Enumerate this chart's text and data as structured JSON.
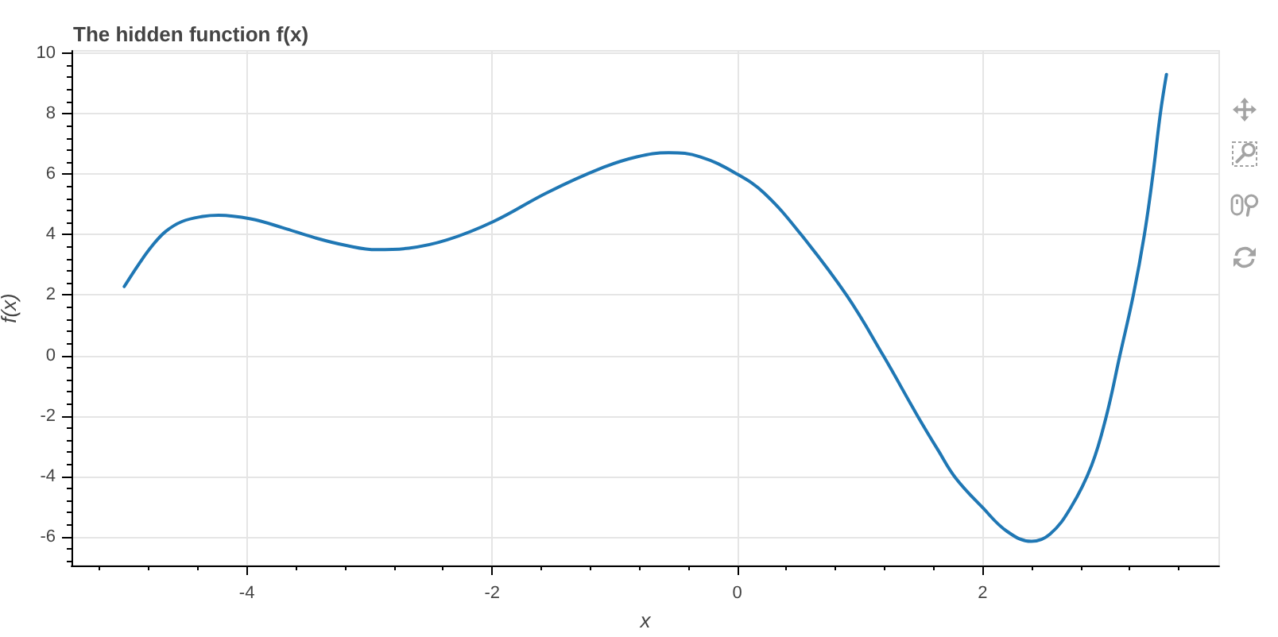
{
  "chart_data": {
    "type": "line",
    "title": "The hidden function f(x)",
    "xlabel": "x",
    "ylabel": "f(x)",
    "x": [
      -5.0,
      -4.88,
      -4.77,
      -4.66,
      -4.53,
      -4.36,
      -4.23,
      -3.97,
      -3.71,
      -3.45,
      -3.19,
      -2.94,
      -2.68,
      -2.37,
      -1.99,
      -1.55,
      -1.12,
      -0.82,
      -0.56,
      -0.3,
      0.0,
      0.22,
      0.52,
      0.89,
      1.19,
      1.47,
      1.64,
      1.78,
      2.0,
      2.2,
      2.4,
      2.55,
      2.72,
      2.89,
      3.01,
      3.12,
      3.23,
      3.32,
      3.39,
      3.45,
      3.5
    ],
    "series": [
      {
        "color": "#1f77b4",
        "values": [
          2.28,
          3.03,
          3.64,
          4.11,
          4.43,
          4.6,
          4.64,
          4.52,
          4.23,
          3.9,
          3.64,
          3.5,
          3.55,
          3.82,
          4.43,
          5.39,
          6.18,
          6.57,
          6.71,
          6.57,
          6.0,
          5.37,
          4.0,
          2.0,
          0.0,
          -2.0,
          -3.15,
          -4.05,
          -5.03,
          -5.82,
          -6.15,
          -5.91,
          -5.03,
          -3.63,
          -2.0,
          0.0,
          2.0,
          4.0,
          6.0,
          8.0,
          9.3
        ]
      }
    ],
    "xlim": [
      -5.43,
      3.93
    ],
    "ylim": [
      -6.95,
      10.08
    ],
    "xticks": [
      -4,
      -2,
      0,
      2
    ],
    "yticks": [
      -6,
      -4,
      -2,
      0,
      2,
      4,
      6,
      8,
      10
    ],
    "grid": true,
    "marker": "none",
    "line_style": "solid"
  }
}
